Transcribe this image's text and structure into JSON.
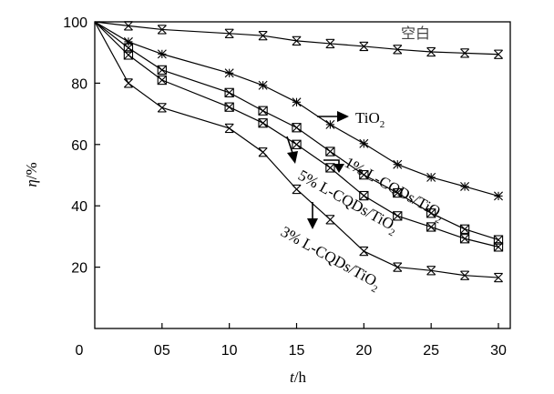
{
  "chart_data": {
    "type": "line",
    "xlabel": {
      "symbol": "t",
      "unit": "/h"
    },
    "ylabel": {
      "symbol": "η",
      "unit": "/%"
    },
    "xlim": [
      0,
      30
    ],
    "ylim": [
      0,
      100
    ],
    "xticks": [
      0,
      5,
      10,
      15,
      20,
      25,
      30
    ],
    "xtick_labels": [
      "0",
      "05",
      "10",
      "15",
      "20",
      "25",
      "30"
    ],
    "yticks": [
      20,
      40,
      60,
      80,
      100
    ],
    "ytick_labels": [
      "20",
      "40",
      "60",
      "80",
      "100"
    ],
    "x": [
      0,
      2.5,
      5,
      10,
      12.5,
      15,
      17.5,
      20,
      22.5,
      25,
      27.5,
      30
    ],
    "series": [
      {
        "name": "空白",
        "marker": "x-cross",
        "values": [
          100,
          98.7,
          97.5,
          96.2,
          95.5,
          93.8,
          92.9,
          92.0,
          91.0,
          90.2,
          89.8,
          89.4
        ]
      },
      {
        "name": "TiO2",
        "label_main": "TiO",
        "label_sub": "2",
        "marker": "star",
        "values": [
          100,
          93.5,
          89.5,
          83.3,
          79.3,
          73.8,
          66.5,
          60.3,
          53.5,
          49.3,
          46.3,
          43.2
        ]
      },
      {
        "name": "1% L-CQDs/TiO2",
        "label_main": "1% L-CQDs/TiO",
        "label_sub": "2",
        "marker": "boxed-x",
        "values": [
          100,
          91.5,
          84.3,
          76.9,
          71.0,
          65.5,
          57.7,
          50.1,
          44.2,
          37.6,
          32.4,
          28.9
        ]
      },
      {
        "name": "5% L-CQDs/TiO2",
        "label_main": "5% L-CQDs/TiO",
        "label_sub": "2",
        "marker": "boxed-x",
        "values": [
          100,
          89.2,
          81.0,
          72.2,
          67.0,
          60.0,
          52.4,
          43.3,
          36.7,
          33.1,
          29.3,
          26.6
        ]
      },
      {
        "name": "3% L-CQDs/TiO2",
        "label_main": "3% L-CQDs/TiO",
        "label_sub": "2",
        "marker": "x-cross",
        "values": [
          100,
          80.0,
          72.0,
          65.3,
          57.5,
          45.4,
          35.5,
          25.2,
          20.0,
          18.9,
          17.3,
          16.6
        ]
      }
    ]
  }
}
